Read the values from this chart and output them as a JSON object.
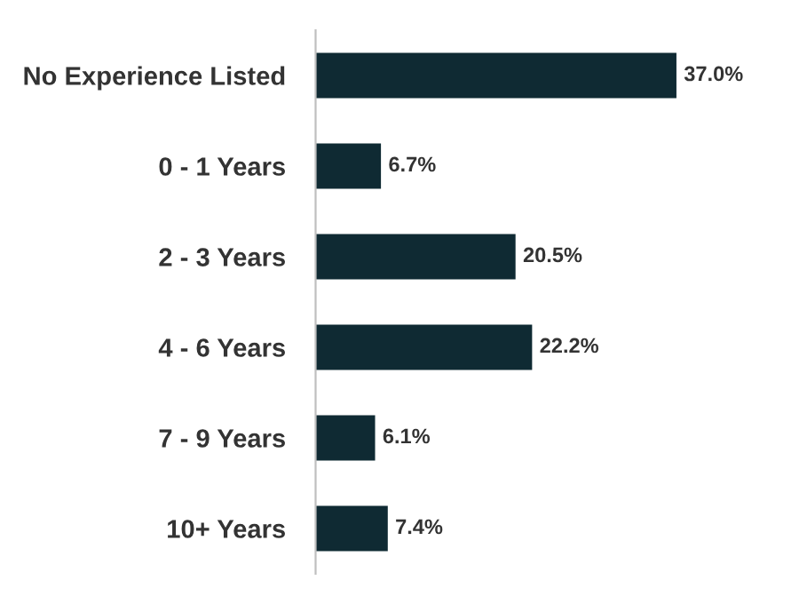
{
  "chart_data": {
    "type": "bar",
    "orientation": "horizontal",
    "categories": [
      "No Experience Listed",
      "0 - 1 Years",
      "2 - 3 Years",
      "4 - 6 Years",
      "7 - 9 Years",
      "10+ Years"
    ],
    "values": [
      37.0,
      6.7,
      20.5,
      22.2,
      6.1,
      7.4
    ],
    "value_labels": [
      "37.0%",
      "6.7%",
      "20.5%",
      "22.2%",
      "6.1%",
      "7.4%"
    ],
    "color": "#0f2a33",
    "grid": false,
    "legend": false
  }
}
